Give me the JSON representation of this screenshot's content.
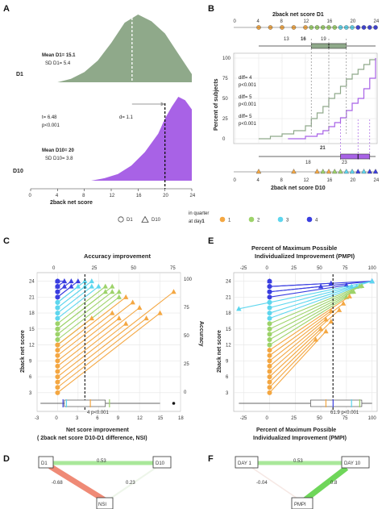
{
  "panels": {
    "A": {
      "letter": "A",
      "xlabel": "2back net score",
      "ticks": [
        0,
        4,
        8,
        12,
        16,
        20,
        24
      ],
      "row_d1": "D1",
      "row_d10": "D10",
      "mean_d1": "Mean D1= 15.1",
      "sd_d1": "SD D1= 5.4",
      "mean_d10": "Mean D10= 20",
      "sd_d10": "SD D10= 3.8",
      "t_text": "t= 6.48",
      "p_text": "p<0.001",
      "d_text": "d=  1.1",
      "colors": {
        "d1": "#8fa98a",
        "d10": "#a862e6"
      }
    },
    "B": {
      "letter": "B",
      "top_label": "2back net score D1",
      "bottom_label": "2back net score D10",
      "ylabel": "Percent of subjects",
      "ticks": [
        0,
        4,
        8,
        12,
        16,
        20,
        24
      ],
      "yticks": [
        0,
        25,
        50,
        75,
        100
      ],
      "diffs": [
        {
          "diff": "diff= 4",
          "p": "p<0.001"
        },
        {
          "diff": "diff= 5",
          "p": "p<0.001"
        },
        {
          "diff": "diff= 5",
          "p": "p<0.001"
        }
      ],
      "box_d1": [
        "13",
        "16",
        "19"
      ],
      "box_d10": [
        "18",
        "21",
        "23"
      ]
    },
    "legend": {
      "d1": "D1",
      "d10": "D10",
      "quarter_title_line1": "in quarter",
      "quarter_title_line2": "at day",
      "quarter_title_bold": "1",
      "quarters": [
        {
          "label": "1",
          "color": "#f4a742"
        },
        {
          "label": "2",
          "color": "#9dd36a"
        },
        {
          "label": "3",
          "color": "#5dd6ee"
        },
        {
          "label": "4",
          "color": "#3a3ee0"
        }
      ]
    },
    "C": {
      "letter": "C",
      "title": "Accuracy improvement",
      "ylabel": "2back net score",
      "ylabel_right": "Accuracy",
      "xlabel_line1": "Net score improvement",
      "xlabel_line2": "( 2back net score  D10-D1 difference, NSI)",
      "bottom_ticks": [
        "-3",
        "0",
        "3",
        "6",
        "9",
        "12",
        "15",
        "18"
      ],
      "top_ticks": [
        "0",
        "25",
        "50",
        "75"
      ],
      "left_ticks": [
        "3",
        "6",
        "9",
        "12",
        "15",
        "18",
        "21",
        "24"
      ],
      "right_ticks": [
        "0",
        "25",
        "50",
        "75",
        "100"
      ],
      "box_annot": "4  p<0.001"
    },
    "E": {
      "letter": "E",
      "title_line1": "Percent of Maximum Possible",
      "title_line2": "Individualized Improvement (PMPI)",
      "ylabel": "2back net score",
      "xlabel_line1": "Percent of Maximum Possible",
      "xlabel_line2": "Individualized Improvement (PMPI)",
      "bottom_ticks": [
        "-25",
        "0",
        "25",
        "50",
        "75",
        "100"
      ],
      "top_ticks": [
        "-25",
        "0",
        "25",
        "50",
        "75",
        "100"
      ],
      "left_ticks": [
        "3",
        "6",
        "9",
        "12",
        "15",
        "18",
        "21",
        "24"
      ],
      "box_annot": "61.9  p<0.001"
    },
    "D": {
      "letter": "D",
      "nodes": {
        "d1": "D1",
        "d10": "D10",
        "nsi": "NSI"
      },
      "edges": {
        "d1_d10": "0.53",
        "d1_nsi": "-0.68",
        "d10_nsi": "0.23"
      }
    },
    "F": {
      "letter": "F",
      "nodes": {
        "day1": "DAY 1",
        "day10": "DAY 10",
        "pmpi": "PMPI"
      },
      "edges": {
        "day1_day10": "0.53",
        "day1_pmpi": "-0.04",
        "day10_pmpi": "0.8"
      }
    }
  },
  "chart_data": [
    {
      "id": "A",
      "type": "area",
      "xlabel": "2back net score",
      "xlim": [
        0,
        24
      ],
      "series": [
        {
          "name": "D1",
          "x": [
            4,
            6,
            8,
            10,
            12,
            14,
            16,
            18,
            20,
            22,
            24
          ],
          "density": [
            0.0,
            0.05,
            0.15,
            0.32,
            0.58,
            0.88,
            1.0,
            0.9,
            0.72,
            0.42,
            0.12
          ]
        },
        {
          "name": "D10",
          "x": [
            9,
            11,
            13,
            15,
            17,
            19,
            20,
            21,
            22,
            23,
            24
          ],
          "density": [
            0.0,
            0.03,
            0.08,
            0.18,
            0.34,
            0.56,
            0.74,
            0.88,
            1.0,
            0.96,
            0.85
          ]
        }
      ],
      "mean_d1": 15.1,
      "sd_d1": 5.4,
      "mean_d10": 20,
      "sd_d10": 3.8,
      "t": 6.48,
      "d": 1.1
    },
    {
      "id": "B",
      "type": "line",
      "xlabel": "2back net score D10",
      "ylabel": "Percent of subjects",
      "xlim": [
        0,
        24
      ],
      "ylim": [
        0,
        100
      ],
      "series": [
        {
          "name": "D1",
          "x": [
            4,
            6,
            8,
            10,
            12,
            13,
            14,
            15,
            16,
            17,
            18,
            19,
            20,
            21,
            22,
            23,
            24
          ],
          "values": [
            0,
            3,
            6,
            10,
            16,
            25,
            32,
            40,
            50,
            56,
            65,
            74,
            80,
            86,
            92,
            98,
            100
          ]
        },
        {
          "name": "D10",
          "x": [
            9,
            12,
            14,
            15,
            16,
            17,
            18,
            19,
            20,
            21,
            22,
            23,
            24
          ],
          "values": [
            0,
            3,
            6,
            10,
            15,
            20,
            26,
            35,
            44,
            50,
            62,
            75,
            100
          ]
        }
      ],
      "quartiles_d1": [
        13,
        16,
        19
      ],
      "quartiles_d10": [
        18,
        21,
        23
      ]
    },
    {
      "id": "C",
      "type": "scatter",
      "ylabel": "2back net score",
      "xlabel": "Net score improvement ( 2back net score  D10-D1 difference, NSI)",
      "xlim": [
        -3,
        18
      ],
      "ylim": [
        1,
        25
      ],
      "mean_improvement": 4,
      "subjects": [
        {
          "d1": 24,
          "nsi": 0,
          "q": 4
        },
        {
          "d1": 24,
          "nsi": 1,
          "q": 4
        },
        {
          "d1": 23,
          "nsi": 1,
          "q": 4
        },
        {
          "d1": 23,
          "nsi": 0,
          "q": 4
        },
        {
          "d1": 22,
          "nsi": 2,
          "q": 4
        },
        {
          "d1": 22,
          "nsi": 1,
          "q": 4
        },
        {
          "d1": 21,
          "nsi": 2,
          "q": 4
        },
        {
          "d1": 21,
          "nsi": 3,
          "q": 4
        },
        {
          "d1": 20,
          "nsi": 4,
          "q": 3
        },
        {
          "d1": 20,
          "nsi": 3,
          "q": 3
        },
        {
          "d1": 19,
          "nsi": 5,
          "q": 3
        },
        {
          "d1": 19,
          "nsi": 4,
          "q": 3
        },
        {
          "d1": 18,
          "nsi": 5,
          "q": 3
        },
        {
          "d1": 17,
          "nsi": 6,
          "q": 3
        },
        {
          "d1": 16,
          "nsi": 7,
          "q": 2
        },
        {
          "d1": 15,
          "nsi": 8,
          "q": 2
        },
        {
          "d1": 15,
          "nsi": 7,
          "q": 2
        },
        {
          "d1": 14,
          "nsi": 8,
          "q": 2
        },
        {
          "d1": 13,
          "nsi": 9,
          "q": 2
        },
        {
          "d1": 12,
          "nsi": 9,
          "q": 2
        },
        {
          "d1": 12,
          "nsi": 5,
          "q": 1
        },
        {
          "d1": 11,
          "nsi": 10,
          "q": 1
        },
        {
          "d1": 10,
          "nsi": 8,
          "q": 1
        },
        {
          "d1": 9,
          "nsi": 11,
          "q": 1
        },
        {
          "d1": 8,
          "nsi": 9,
          "q": 1
        },
        {
          "d1": 7,
          "nsi": 12,
          "q": 1
        },
        {
          "d1": 6,
          "nsi": 10,
          "q": 1
        },
        {
          "d1": 5,
          "nsi": 17,
          "q": 1
        },
        {
          "d1": 4,
          "nsi": 13,
          "q": 1
        },
        {
          "d1": 3,
          "nsi": 15,
          "q": 1
        }
      ]
    },
    {
      "id": "E",
      "type": "scatter",
      "ylabel": "2back net score",
      "xlabel": "Percent of Maximum Possible Individualized Improvement (PMPI)",
      "xlim": [
        -35,
        105
      ],
      "ylim": [
        1,
        25
      ],
      "mean_pmpi": 61.9,
      "subjects": [
        {
          "d1": 24,
          "pmpi": 0,
          "q": 4
        },
        {
          "d1": 23,
          "pmpi": 100,
          "q": 4
        },
        {
          "d1": 23,
          "pmpi": 60,
          "q": 4
        },
        {
          "d1": 22,
          "pmpi": 100,
          "q": 4
        },
        {
          "d1": 22,
          "pmpi": 50,
          "q": 4
        },
        {
          "d1": 21,
          "pmpi": 75,
          "q": 4
        },
        {
          "d1": 20,
          "pmpi": 100,
          "q": 3
        },
        {
          "d1": 20,
          "pmpi": -30,
          "q": 3
        },
        {
          "d1": 19,
          "pmpi": 80,
          "q": 3
        },
        {
          "d1": 18,
          "pmpi": 100,
          "q": 3
        },
        {
          "d1": 17,
          "pmpi": 85,
          "q": 3
        },
        {
          "d1": 16,
          "pmpi": 88,
          "q": 2
        },
        {
          "d1": 15,
          "pmpi": 90,
          "q": 2
        },
        {
          "d1": 14,
          "pmpi": 80,
          "q": 2
        },
        {
          "d1": 13,
          "pmpi": 82,
          "q": 2
        },
        {
          "d1": 12,
          "pmpi": 75,
          "q": 2
        },
        {
          "d1": 11,
          "pmpi": 78,
          "q": 1
        },
        {
          "d1": 10,
          "pmpi": 60,
          "q": 1
        },
        {
          "d1": 9,
          "pmpi": 72,
          "q": 1
        },
        {
          "d1": 8,
          "pmpi": 55,
          "q": 1
        },
        {
          "d1": 7,
          "pmpi": 68,
          "q": 1
        },
        {
          "d1": 6,
          "pmpi": 50,
          "q": 1
        },
        {
          "d1": 5,
          "pmpi": 60,
          "q": 1
        },
        {
          "d1": 4,
          "pmpi": 45,
          "q": 1
        },
        {
          "d1": 3,
          "pmpi": 55,
          "q": 1
        }
      ]
    }
  ]
}
